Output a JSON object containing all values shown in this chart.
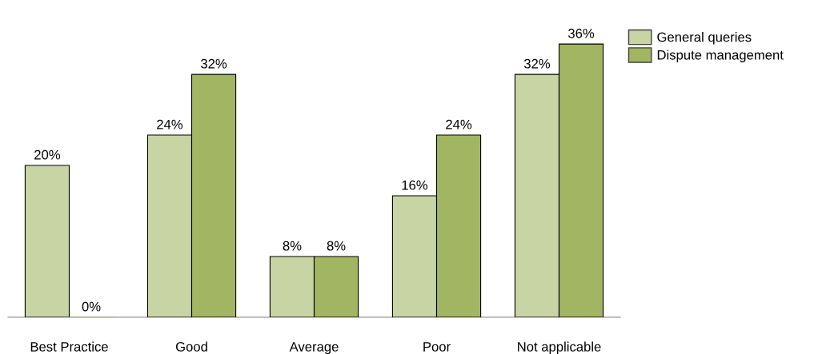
{
  "chart_data": {
    "type": "bar",
    "categories": [
      "Best Practice",
      "Good",
      "Average",
      "Poor",
      "Not applicable"
    ],
    "series": [
      {
        "name": "General queries",
        "color": "#c8d4a3",
        "values": [
          20,
          24,
          8,
          16,
          32
        ],
        "value_labels": [
          "20%",
          "24%",
          "8%",
          "16%",
          "32%"
        ]
      },
      {
        "name": "Dispute management",
        "color": "#a2b563",
        "values": [
          0,
          32,
          8,
          24,
          36
        ],
        "value_labels": [
          "0%",
          "32%",
          "8%",
          "24%",
          "36%"
        ]
      }
    ],
    "legend": "top right",
    "grid": false
  }
}
